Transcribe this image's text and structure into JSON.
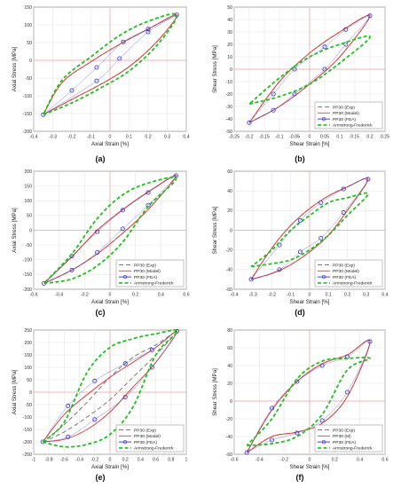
{
  "colors": {
    "exp": "#7a7a7a",
    "model": "#d9463f",
    "fea": "#2f2fd0",
    "af": "#22c022",
    "grid": "#e6e6e6",
    "axis": "#555555",
    "origin": "#f2a0a0",
    "legend_border": "#9a9a9a"
  },
  "chart_data": [
    {
      "type": "line",
      "panel_label": "(a)",
      "xlabel": "Axial Strain [%]",
      "ylabel": "Axial Stress [MPa]",
      "xlim": [
        -0.4,
        0.4
      ],
      "ylim": [
        -200,
        150
      ],
      "xticks": [
        -0.4,
        -0.3,
        -0.2,
        -0.1,
        0,
        0.1,
        0.2,
        0.3,
        0.4
      ],
      "xtick_labels": [
        "-0.4",
        "-0.3",
        "-0.2",
        "-0.1",
        "0",
        "0.1",
        "0.2",
        "0.3",
        "0.4"
      ],
      "yticks": [
        -200,
        -150,
        -100,
        -50,
        0,
        50,
        100,
        150
      ],
      "ytick_labels": [
        "-200",
        "-150",
        "-100",
        "-50",
        "0",
        "50",
        "100",
        "150"
      ],
      "grid": true,
      "legend": [],
      "series": [
        {
          "name": "PP30 (Exp)",
          "style": "dash",
          "role": "exp",
          "x": [
            -0.35,
            -0.2,
            -0.05,
            0.1,
            0.25,
            0.35,
            0.2,
            0.05,
            -0.1,
            -0.25,
            -0.35
          ],
          "y": [
            -153,
            -110,
            -68,
            -18,
            55,
            128,
            88,
            45,
            -4,
            -62,
            -153
          ]
        },
        {
          "name": "PP30 (Model)",
          "style": "solid",
          "role": "model",
          "x": [
            -0.35,
            -0.2,
            -0.05,
            0.1,
            0.25,
            0.35,
            0.2,
            0.05,
            -0.1,
            -0.25,
            -0.35
          ],
          "y": [
            -153,
            -110,
            -68,
            -18,
            55,
            128,
            88,
            45,
            -4,
            -62,
            -153
          ]
        },
        {
          "name": "PP30 (FEA)",
          "style": "circles",
          "role": "fea",
          "x": [
            -0.35,
            -0.07,
            0.05,
            0.2,
            0.35,
            0.2,
            0.07,
            -0.07,
            -0.2
          ],
          "y": [
            -153,
            -58,
            5,
            80,
            128,
            88,
            52,
            -20,
            -85
          ]
        },
        {
          "name": "Armstrong-Frederick",
          "style": "dash",
          "role": "af",
          "x": [
            -0.35,
            -0.2,
            -0.05,
            0.1,
            0.25,
            0.35,
            0.2,
            0.05,
            -0.1,
            -0.25,
            -0.35
          ],
          "y": [
            -153,
            -120,
            -78,
            -30,
            45,
            128,
            110,
            70,
            10,
            -55,
            -153
          ]
        }
      ]
    },
    {
      "type": "line",
      "panel_label": "(b)",
      "xlabel": "Shear Strain [%]",
      "ylabel": "Shear Stress [MPa]",
      "xlim": [
        -0.25,
        0.25
      ],
      "ylim": [
        -50,
        50
      ],
      "xticks": [
        -0.25,
        -0.2,
        -0.15,
        -0.1,
        -0.05,
        0,
        0.05,
        0.1,
        0.15,
        0.2,
        0.25
      ],
      "xtick_labels": [
        "-0.25",
        "-0.2",
        "-0.15",
        "-0.1",
        "-0.05",
        "0",
        "0.05",
        "0.1",
        "0.15",
        "0.2",
        "0.25"
      ],
      "yticks": [
        -50,
        -40,
        -30,
        -20,
        -10,
        0,
        10,
        20,
        30,
        40,
        50
      ],
      "ytick_labels": [
        "-50",
        "-40",
        "-30",
        "-20",
        "-10",
        "0",
        "10",
        "20",
        "30",
        "40",
        "50"
      ],
      "grid": true,
      "legend": [
        "PP30 (Exp)",
        "PP30 (Model)",
        "PP30 (FEA)",
        "Armstrong-Frederick"
      ],
      "series": [
        {
          "name": "PP30 (Exp)",
          "style": "dash",
          "role": "exp",
          "x": [
            -0.2,
            -0.1,
            0,
            0.1,
            0.2,
            0.1,
            0,
            -0.1,
            -0.2
          ],
          "y": [
            -43,
            -30,
            -12,
            10,
            43,
            30,
            13,
            -10,
            -43
          ]
        },
        {
          "name": "PP30 (Model)",
          "style": "solid",
          "role": "model",
          "x": [
            -0.2,
            -0.1,
            0,
            0.1,
            0.2,
            0.1,
            0,
            -0.1,
            -0.2
          ],
          "y": [
            -43,
            -30,
            -12,
            10,
            43,
            30,
            13,
            -10,
            -43
          ]
        },
        {
          "name": "PP30 (FEA)",
          "style": "circles",
          "role": "fea",
          "x": [
            -0.2,
            -0.12,
            -0.05,
            0.05,
            0.12,
            0.2,
            0.12,
            0.05,
            -0.05,
            -0.12
          ],
          "y": [
            -43,
            -33,
            -20,
            0,
            20,
            43,
            32,
            18,
            0,
            -20
          ]
        },
        {
          "name": "Armstrong-Frederick",
          "style": "dash",
          "role": "af",
          "x": [
            -0.2,
            -0.1,
            0,
            0.1,
            0.2,
            0.1,
            0,
            -0.1,
            -0.2
          ],
          "y": [
            -28,
            -22,
            -12,
            5,
            26,
            20,
            10,
            -7,
            -28
          ]
        }
      ]
    },
    {
      "type": "line",
      "panel_label": "(c)",
      "xlabel": "Axial Strain [%]",
      "ylabel": "Axial Stress [MPa]",
      "xlim": [
        -0.6,
        0.6
      ],
      "ylim": [
        -200,
        200
      ],
      "xticks": [
        -0.6,
        -0.4,
        -0.2,
        0,
        0.2,
        0.4,
        0.6
      ],
      "xtick_labels": [
        "-0.6",
        "-0.4",
        "-0.2",
        "0",
        "0.2",
        "0.4",
        "0.6"
      ],
      "yticks": [
        -200,
        -150,
        -100,
        -50,
        0,
        50,
        100,
        150,
        200
      ],
      "ytick_labels": [
        "-200",
        "-150",
        "-100",
        "-50",
        "0",
        "50",
        "100",
        "150",
        "200"
      ],
      "grid": true,
      "legend": [
        "PP30 (Exp)",
        "PP30 (Model)",
        "PP30 (FEA)",
        "Armstrong-Frederick"
      ],
      "series": [
        {
          "name": "PP30 (Exp)",
          "style": "dash",
          "role": "exp",
          "x": [
            -0.52,
            -0.3,
            -0.1,
            0.1,
            0.3,
            0.52,
            0.3,
            0.1,
            -0.1,
            -0.3,
            -0.52
          ],
          "y": [
            -180,
            -135,
            -80,
            -10,
            70,
            185,
            130,
            70,
            0,
            -90,
            -180
          ]
        },
        {
          "name": "PP30 (Model)",
          "style": "solid",
          "role": "model",
          "x": [
            -0.52,
            -0.3,
            -0.1,
            0.1,
            0.3,
            0.52,
            0.3,
            0.1,
            -0.1,
            -0.3,
            -0.52
          ],
          "y": [
            -180,
            -135,
            -80,
            -10,
            70,
            185,
            130,
            70,
            0,
            -90,
            -180
          ]
        },
        {
          "name": "PP30 (FEA)",
          "style": "circles",
          "role": "fea",
          "x": [
            -0.52,
            -0.3,
            -0.1,
            0.1,
            0.3,
            0.52,
            0.3,
            0.1,
            -0.1,
            -0.3
          ],
          "y": [
            -180,
            -135,
            -75,
            5,
            85,
            185,
            128,
            68,
            -5,
            -88
          ]
        },
        {
          "name": "Armstrong-Frederick",
          "style": "dash",
          "role": "af",
          "x": [
            -0.52,
            -0.3,
            -0.1,
            0.1,
            0.3,
            0.52,
            0.3,
            0.1,
            -0.1,
            -0.3,
            -0.52
          ],
          "y": [
            -180,
            -165,
            -120,
            -40,
            80,
            175,
            160,
            120,
            40,
            -80,
            -180
          ]
        }
      ]
    },
    {
      "type": "line",
      "panel_label": "(d)",
      "xlabel": "Shear Strain [%]",
      "ylabel": "Shear Stress [MPa]",
      "xlim": [
        -0.4,
        0.4
      ],
      "ylim": [
        -60,
        60
      ],
      "xticks": [
        -0.4,
        -0.3,
        -0.2,
        -0.1,
        0,
        0.1,
        0.2,
        0.3,
        0.4
      ],
      "xtick_labels": [
        "-0.4",
        "-0.3",
        "-0.2",
        "-0.1",
        "0",
        "0.1",
        "0.2",
        "0.3",
        "0.4"
      ],
      "yticks": [
        -60,
        -40,
        -20,
        0,
        20,
        40,
        60
      ],
      "ytick_labels": [
        "-60",
        "-40",
        "-20",
        "0",
        "20",
        "40",
        "60"
      ],
      "grid": true,
      "legend": [
        "PP30 (Exp)",
        "PP30 (Model)",
        "PP30 (FEA)",
        "Armstrong-Frederick"
      ],
      "series": [
        {
          "name": "PP30 (Exp)",
          "style": "dash",
          "role": "exp",
          "x": [
            -0.31,
            -0.2,
            -0.1,
            0,
            0.1,
            0.2,
            0.31,
            0.2,
            0.1,
            0,
            -0.1,
            -0.2,
            -0.31
          ],
          "y": [
            -50,
            -44,
            -35,
            -22,
            -5,
            20,
            52,
            44,
            35,
            22,
            5,
            -18,
            -50
          ]
        },
        {
          "name": "PP30 (Model)",
          "style": "solid",
          "role": "model",
          "x": [
            -0.31,
            -0.2,
            -0.1,
            0,
            0.1,
            0.2,
            0.31,
            0.2,
            0.1,
            0,
            -0.1,
            -0.2,
            -0.31
          ],
          "y": [
            -50,
            -44,
            -35,
            -22,
            -5,
            20,
            52,
            44,
            35,
            22,
            5,
            -18,
            -50
          ]
        },
        {
          "name": "PP30 (FEA)",
          "style": "circles",
          "role": "fea",
          "x": [
            -0.31,
            -0.16,
            -0.05,
            0.06,
            0.18,
            0.31,
            0.18,
            0.06,
            -0.05,
            -0.16
          ],
          "y": [
            -50,
            -40,
            -22,
            -8,
            18,
            52,
            42,
            28,
            10,
            -15
          ]
        },
        {
          "name": "Armstrong-Frederick",
          "style": "dash",
          "role": "af",
          "x": [
            -0.31,
            -0.2,
            -0.1,
            0,
            0.1,
            0.2,
            0.31,
            0.2,
            0.1,
            0,
            -0.1,
            -0.2,
            -0.31
          ],
          "y": [
            -37,
            -34,
            -30,
            -20,
            -5,
            15,
            37,
            33,
            28,
            15,
            0,
            -20,
            -37
          ]
        }
      ]
    },
    {
      "type": "line",
      "panel_label": "(e)",
      "xlabel": "Axial Strain [%]",
      "ylabel": "Axial Stress [MPa]",
      "xlim": [
        -1,
        1
      ],
      "ylim": [
        -250,
        250
      ],
      "xticks": [
        -1,
        -0.8,
        -0.6,
        -0.4,
        -0.2,
        0,
        0.2,
        0.4,
        0.6,
        0.8,
        1
      ],
      "xtick_labels": [
        "-1",
        "-0.8",
        "-0.6",
        "-0.4",
        "-0.2",
        "0",
        "0.2",
        "0.4",
        "0.6",
        "0.8",
        "1"
      ],
      "yticks": [
        -250,
        -200,
        -150,
        -100,
        -50,
        0,
        50,
        100,
        150,
        200,
        250
      ],
      "ytick_labels": [
        "-250",
        "-200",
        "-150",
        "-100",
        "-50",
        "0",
        "50",
        "100",
        "150",
        "200",
        "250"
      ],
      "grid": true,
      "legend": [
        "PP30 (Exp)",
        "PP30 (Model)",
        "PP30 (FEA)",
        "Armstrong-Frederick"
      ],
      "series": [
        {
          "name": "PP30 (Exp)",
          "style": "dash",
          "role": "exp",
          "x": [
            -0.88,
            -0.6,
            -0.3,
            0,
            0.3,
            0.6,
            0.88,
            0.6,
            0.3,
            0,
            -0.3,
            -0.6,
            -0.88
          ],
          "y": [
            -200,
            -160,
            -100,
            -30,
            60,
            150,
            245,
            190,
            140,
            60,
            -40,
            -130,
            -200
          ]
        },
        {
          "name": "PP30 (Model)",
          "style": "solid",
          "role": "model",
          "x": [
            -0.88,
            -0.6,
            -0.3,
            0,
            0.3,
            0.6,
            0.88,
            0.6,
            0.3,
            0,
            -0.3,
            -0.6,
            -0.88
          ],
          "y": [
            -200,
            -190,
            -150,
            -80,
            20,
            120,
            245,
            180,
            120,
            60,
            -10,
            -90,
            -200
          ]
        },
        {
          "name": "PP30 (FEA)",
          "style": "circles",
          "role": "fea",
          "x": [
            -0.88,
            -0.55,
            -0.2,
            0.2,
            0.55,
            0.88,
            0.55,
            0.2,
            -0.2,
            -0.55
          ],
          "y": [
            -200,
            -180,
            -110,
            -20,
            100,
            245,
            170,
            115,
            45,
            -55
          ]
        },
        {
          "name": "Armstrong-Frederick",
          "style": "dash",
          "role": "af",
          "x": [
            -0.88,
            -0.6,
            -0.3,
            0,
            0.3,
            0.6,
            0.88,
            0.6,
            0.3,
            0,
            -0.3,
            -0.6,
            -0.88
          ],
          "y": [
            -200,
            -220,
            -210,
            -170,
            -60,
            150,
            245,
            235,
            215,
            180,
            80,
            -120,
            -200
          ]
        }
      ]
    },
    {
      "type": "line",
      "panel_label": "(f)",
      "xlabel": "Shear Strain [%]",
      "ylabel": "Shear Stress [MPa]",
      "xlim": [
        -0.6,
        0.6
      ],
      "ylim": [
        -60,
        80
      ],
      "xticks": [
        -0.6,
        -0.4,
        -0.2,
        0,
        0.2,
        0.4,
        0.6
      ],
      "xtick_labels": [
        "-0.6",
        "-0.4",
        "-0.2",
        "0",
        "0.2",
        "0.4",
        "0.6"
      ],
      "yticks": [
        -60,
        -40,
        -20,
        0,
        20,
        40,
        60,
        80
      ],
      "ytick_labels": [
        "-60",
        "-40",
        "-20",
        "0",
        "20",
        "40",
        "60",
        "80"
      ],
      "grid": true,
      "legend": [
        "PP30 (Exp)",
        "PP30 (M)",
        "PP30 (FEA)",
        "Armstrong-Frederick"
      ],
      "series": [
        {
          "name": "PP30 (Exp)",
          "style": "dash",
          "role": "exp",
          "x": [
            -0.5,
            -0.3,
            -0.1,
            0.1,
            0.3,
            0.48,
            0.3,
            0.1,
            -0.1,
            -0.3,
            -0.5
          ],
          "y": [
            -58,
            -40,
            -35,
            -25,
            5,
            67,
            52,
            42,
            22,
            -10,
            -58
          ]
        },
        {
          "name": "PP30 (M)",
          "style": "solid",
          "role": "model",
          "x": [
            -0.5,
            -0.3,
            -0.1,
            0.1,
            0.3,
            0.48,
            0.3,
            0.1,
            -0.1,
            -0.3,
            -0.5
          ],
          "y": [
            -58,
            -40,
            -35,
            -25,
            5,
            67,
            52,
            42,
            22,
            -10,
            -58
          ]
        },
        {
          "name": "PP30 (FEA)",
          "style": "circles",
          "role": "fea",
          "x": [
            -0.5,
            -0.3,
            -0.1,
            0.1,
            0.3,
            0.48,
            0.3,
            0.1,
            -0.1,
            -0.3
          ],
          "y": [
            -58,
            -44,
            -36,
            -22,
            10,
            67,
            50,
            40,
            22,
            -8
          ]
        },
        {
          "name": "Armstrong-Frederick",
          "style": "dash",
          "role": "af",
          "x": [
            -0.5,
            -0.3,
            -0.1,
            0.1,
            0.3,
            0.48,
            0.3,
            0.1,
            -0.1,
            -0.3,
            -0.5
          ],
          "y": [
            -50,
            -48,
            -40,
            -15,
            35,
            48,
            48,
            45,
            25,
            -20,
            -50
          ]
        }
      ]
    }
  ]
}
